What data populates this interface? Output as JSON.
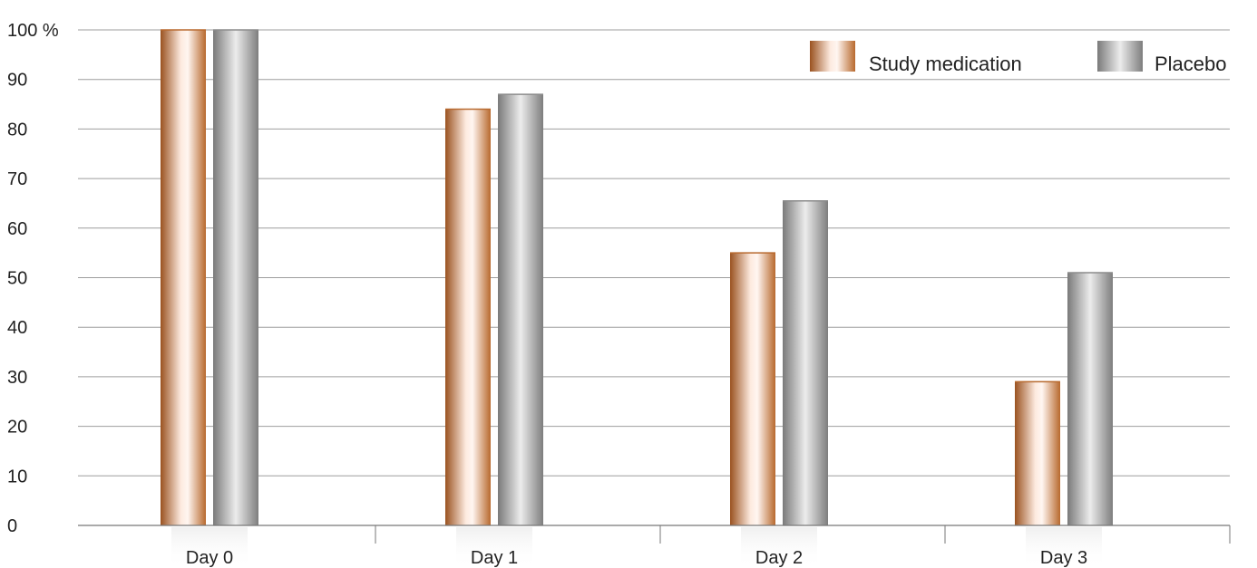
{
  "chart_data": {
    "type": "bar",
    "title": "",
    "xlabel": "",
    "ylabel": "",
    "y_unit": "%",
    "ylim": [
      0,
      100
    ],
    "yticks": [
      0,
      10,
      20,
      30,
      40,
      50,
      60,
      70,
      80,
      90,
      100
    ],
    "ytick_labels": [
      "0",
      "10",
      "20",
      "30",
      "40",
      "50",
      "60",
      "70",
      "80",
      "90",
      "100 %"
    ],
    "categories": [
      "Day 0",
      "Day 1",
      "Day 2",
      "Day 3"
    ],
    "series": [
      {
        "name": "Study medication",
        "values": [
          100,
          84,
          55,
          29
        ],
        "color": "#b8692e",
        "highlight": "#fde8dc"
      },
      {
        "name": "Placebo",
        "values": [
          100,
          87,
          65.5,
          51
        ],
        "color": "#8c8c8c",
        "highlight": "#eeeeee"
      }
    ],
    "grid": true,
    "legend_position": "top-right"
  }
}
